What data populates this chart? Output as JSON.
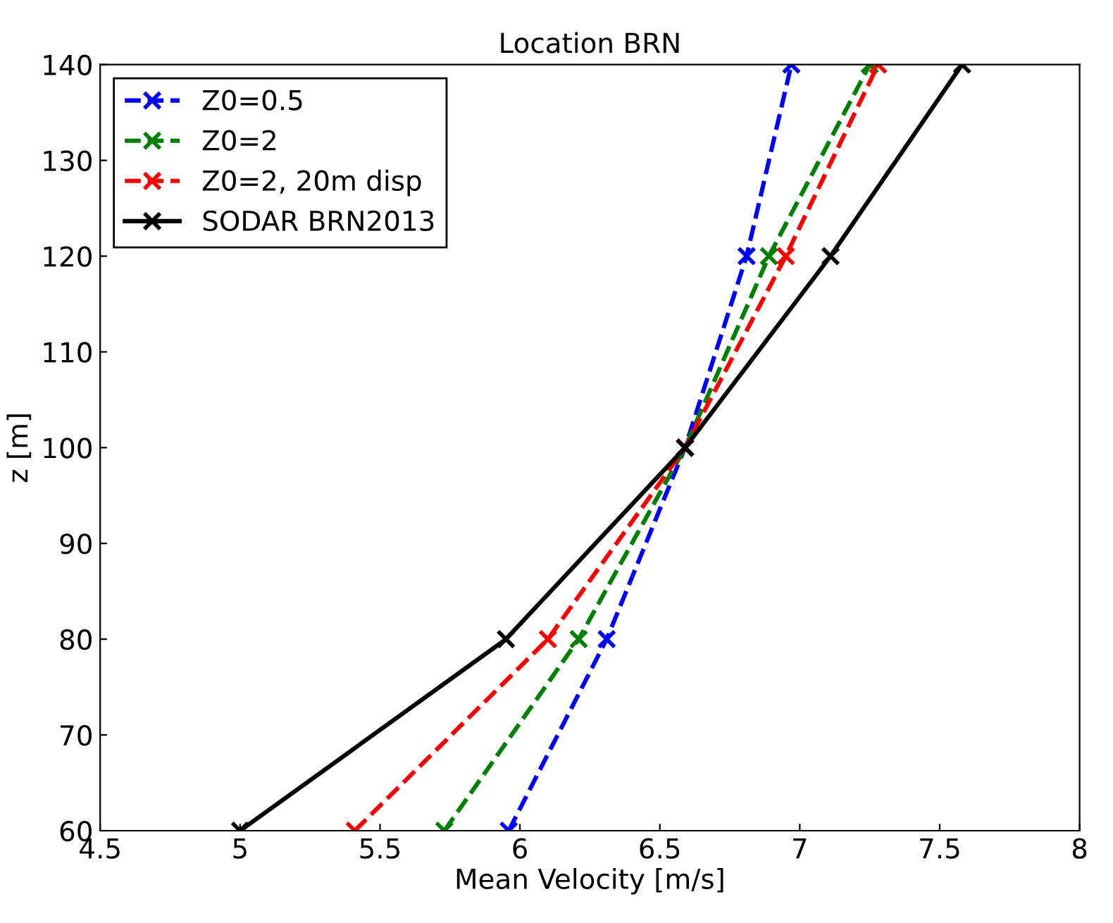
{
  "chart_data": {
    "type": "line",
    "title": "Location BRN",
    "xlabel": "Mean Velocity [m/s]",
    "ylabel": "z [m]",
    "xlim": [
      4.5,
      8
    ],
    "xticks": [
      4.5,
      5,
      5.5,
      6,
      6.5,
      7,
      7.5,
      8
    ],
    "ylim": [
      60,
      140
    ],
    "yticks": [
      60,
      70,
      80,
      90,
      100,
      110,
      120,
      130,
      140
    ],
    "grid": false,
    "legend": "top left",
    "marker": "cross",
    "series": [
      {
        "name": "Z0=0.5",
        "color": "#0000ff",
        "line_style": "dashed",
        "x": [
          5.96,
          6.31,
          6.59,
          6.81,
          6.97
        ],
        "values": [
          60,
          80,
          100,
          120,
          140
        ]
      },
      {
        "name": "Z0=2",
        "color": "#008000",
        "line_style": "dashed",
        "x": [
          5.73,
          6.21,
          6.59,
          6.89,
          7.25
        ],
        "values": [
          60,
          80,
          100,
          120,
          140
        ]
      },
      {
        "name": "Z0=2, 20m disp",
        "color": "#ff0000",
        "line_style": "dashed",
        "x": [
          5.41,
          6.1,
          6.59,
          6.95,
          7.28
        ],
        "values": [
          60,
          80,
          100,
          120,
          140
        ]
      },
      {
        "name": "SODAR BRN2013",
        "color": "#000000",
        "line_style": "solid",
        "x": [
          5.0,
          5.95,
          6.59,
          7.11,
          7.58
        ],
        "values": [
          60,
          80,
          100,
          120,
          140
        ]
      }
    ]
  }
}
